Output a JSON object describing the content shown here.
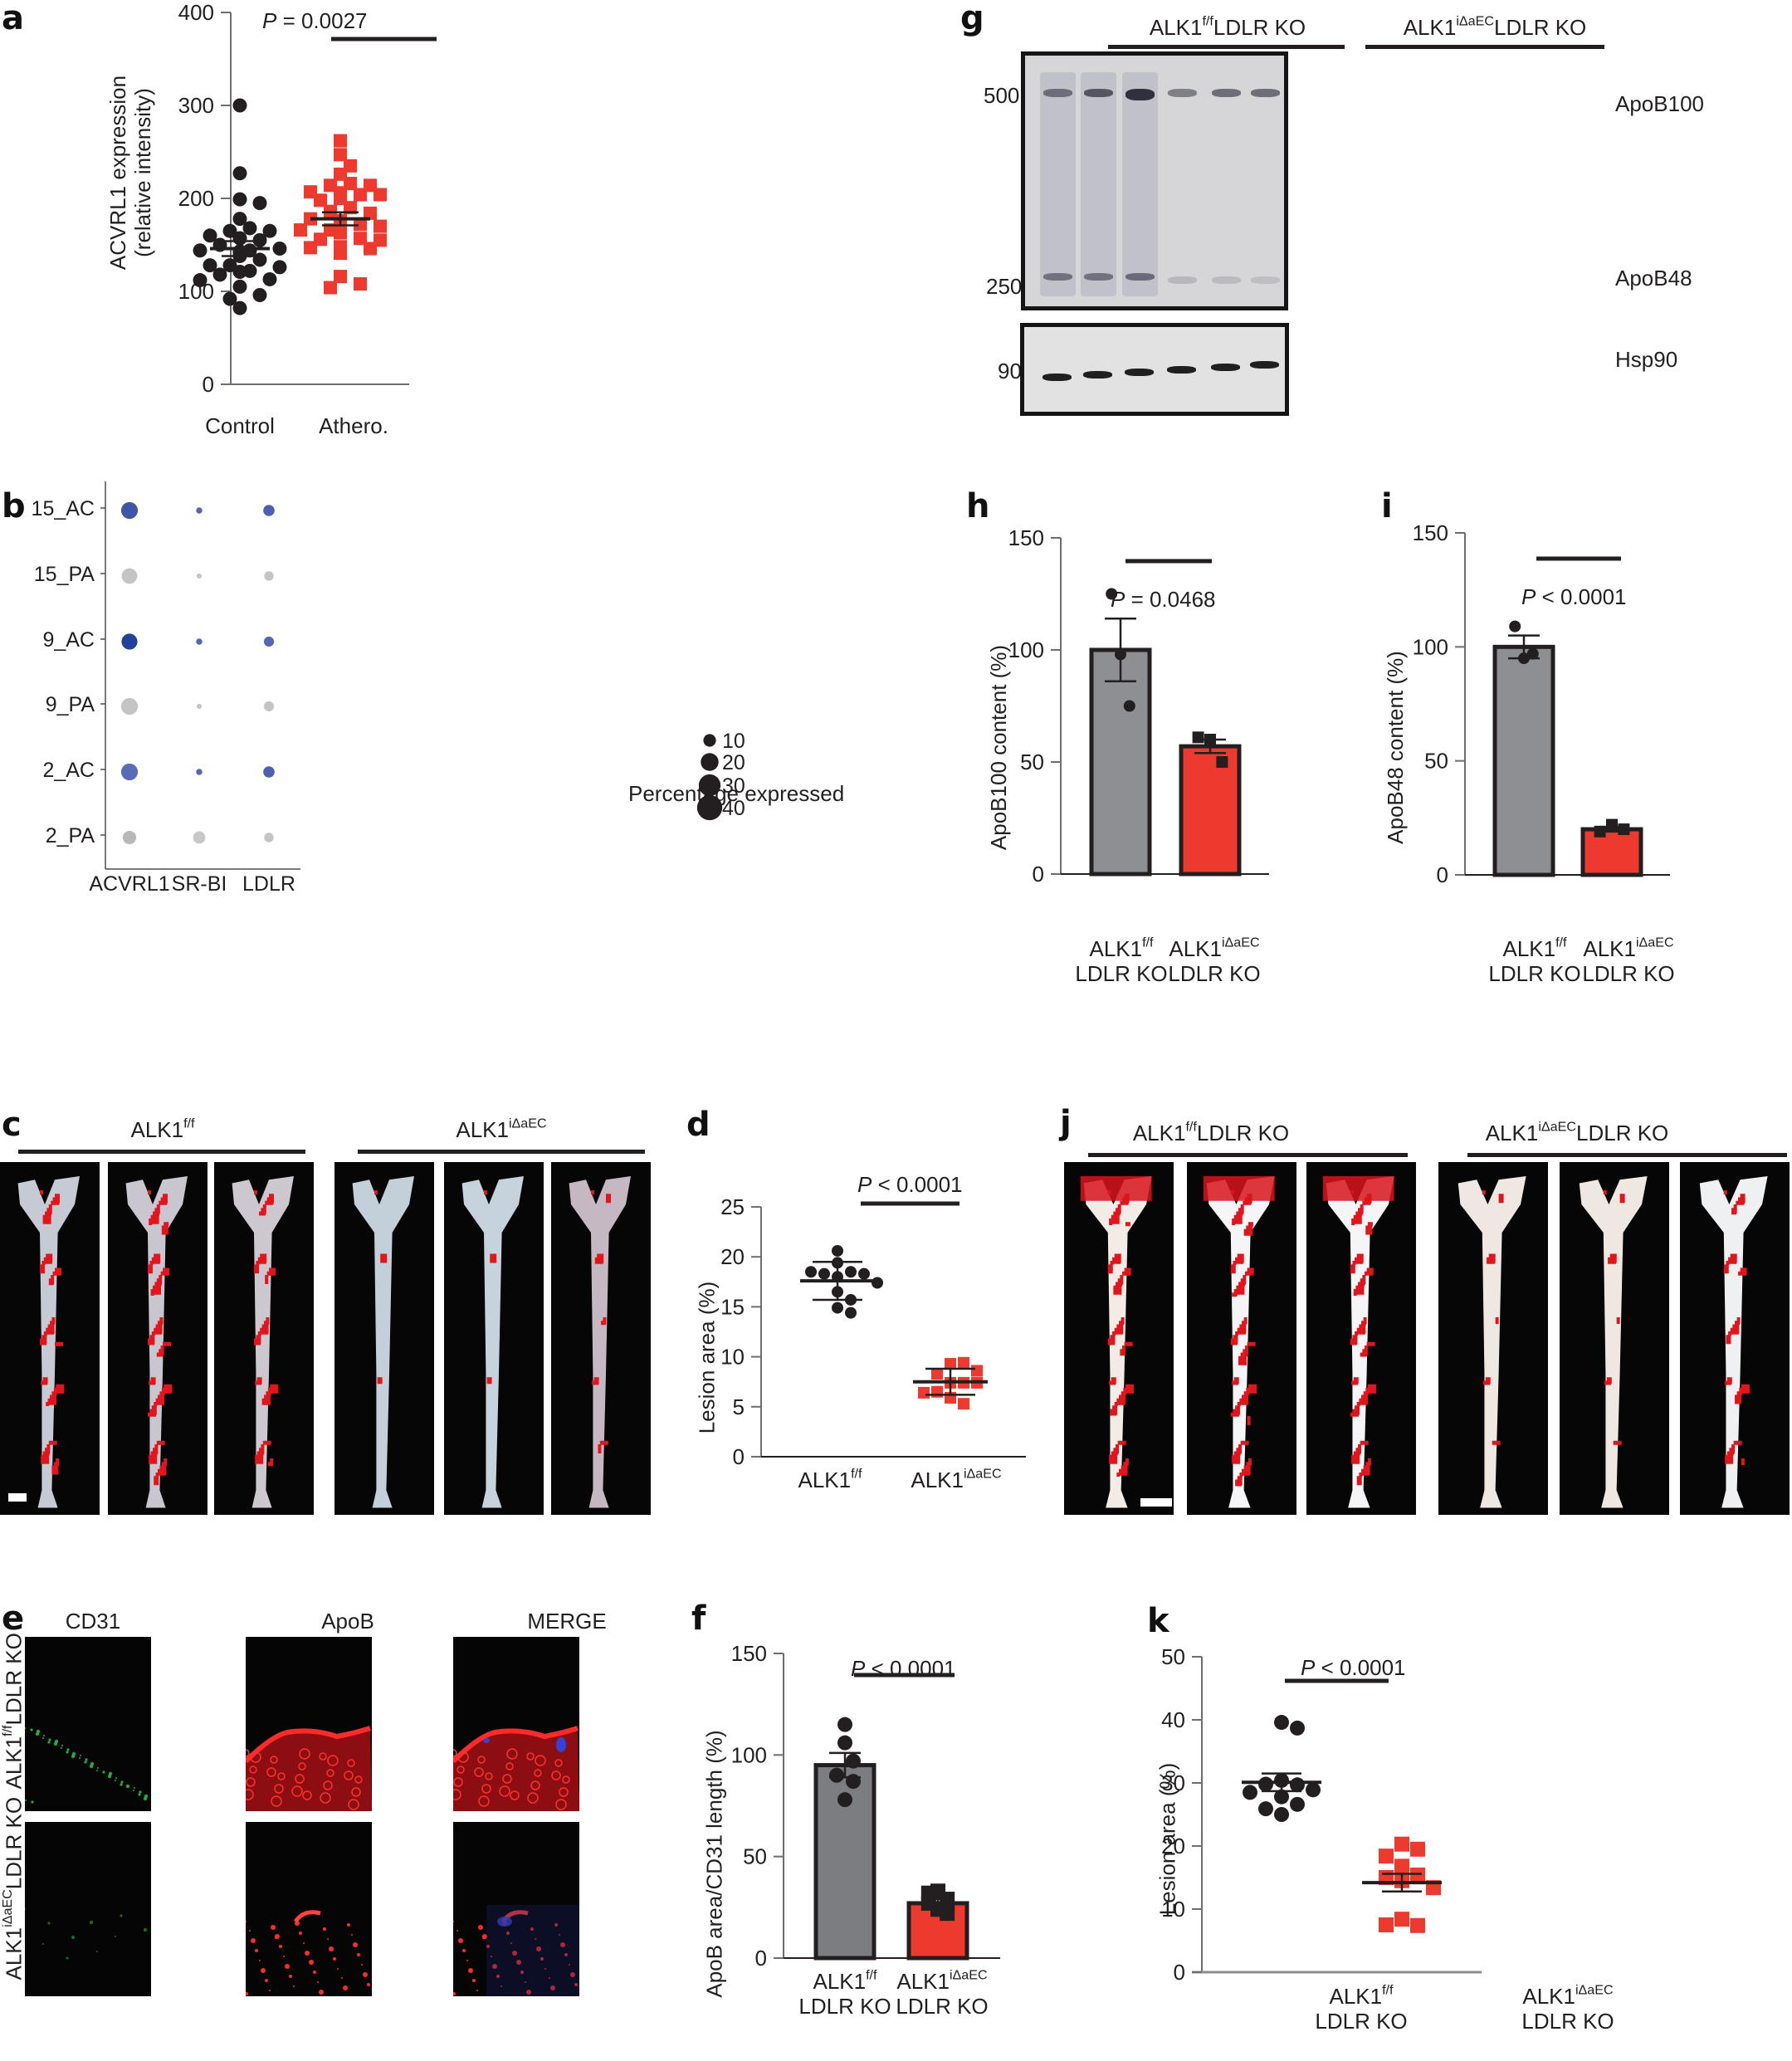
{
  "figure": {
    "panel_letters": [
      "a",
      "b",
      "c",
      "d",
      "e",
      "f",
      "g",
      "h",
      "i",
      "j",
      "k"
    ]
  },
  "panel_a": {
    "letter": "a",
    "ylabel_line1": "ACVRL1 expression",
    "ylabel_line2": "(relative intensity)",
    "pvalue_prefix": "P",
    "pvalue_text": " = 0.0027",
    "categories": [
      "Control",
      "Athero."
    ],
    "yticks": [
      "0",
      "100",
      "200",
      "300",
      "400"
    ]
  },
  "panel_b": {
    "letter": "b",
    "rows": [
      "15_AC",
      "15_PA",
      "9_AC",
      "9_PA",
      "2_AC",
      "2_PA"
    ],
    "columns": [
      "ACVRL1",
      "SR-BI",
      "LDLR"
    ],
    "legend_title": "Percentage expressed",
    "legend_values": [
      "10",
      "20",
      "30",
      "40"
    ]
  },
  "panel_c": {
    "letter": "c",
    "group1_base": "ALK1",
    "group1_sup": "f/f",
    "group2_base": "ALK1",
    "group2_sup": "iΔaEC"
  },
  "panel_d": {
    "letter": "d",
    "ylabel": "Lesion area (%)",
    "pvalue_prefix": "P",
    "pvalue_text": " < 0.0001",
    "cat1_base": "ALK1",
    "cat1_sup": "f/f",
    "cat2_base": "ALK1",
    "cat2_sup": "iΔaEC",
    "yticks": [
      "0",
      "5",
      "10",
      "15",
      "20",
      "25"
    ]
  },
  "panel_e": {
    "letter": "e",
    "col_headers": [
      "CD31",
      "ApoB",
      "MERGE"
    ],
    "row1_base": "ALK1",
    "row1_sup": "f/f",
    "row1_suffix": "LDLR KO",
    "row2_base": "ALK1",
    "row2_sup": "iΔaEC",
    "row2_suffix": "LDLR KO"
  },
  "panel_f": {
    "letter": "f",
    "ylabel": "ApoB area/CD31 length (%)",
    "pvalue_prefix": "P",
    "pvalue_text": " < 0.0001",
    "cat1_base": "ALK1",
    "cat1_sup": "f/f",
    "cat1_line2": "LDLR KO",
    "cat2_base": "ALK1",
    "cat2_sup": "iΔaEC",
    "cat2_line2": "LDLR KO",
    "yticks": [
      "0",
      "50",
      "100",
      "150"
    ]
  },
  "panel_g": {
    "letter": "g",
    "group1_base": "ALK1",
    "group1_sup": "f/f",
    "group1_suffix": "LDLR KO",
    "group2_base": "ALK1",
    "group2_sup": "iΔaEC",
    "group2_suffix": "LDLR KO",
    "mw_500": "500 kDa",
    "mw_250": "250 kDa",
    "mw_90": "90 kDa",
    "band_apob100": "ApoB100",
    "band_apob48": "ApoB48",
    "band_hsp90": "Hsp90"
  },
  "panel_h": {
    "letter": "h",
    "ylabel": "ApoB100 content (%)",
    "pvalue_prefix": "P",
    "pvalue_text": " = 0.0468",
    "cat1_base": "ALK1",
    "cat1_sup": "f/f",
    "cat1_line2": "LDLR KO",
    "cat2_base": "ALK1",
    "cat2_sup": "iΔaEC",
    "cat2_line2": "LDLR KO",
    "yticks": [
      "0",
      "50",
      "100",
      "150"
    ]
  },
  "panel_i": {
    "letter": "i",
    "ylabel": "ApoB48 content (%)",
    "pvalue_prefix": "P",
    "pvalue_text": " < 0.0001",
    "cat1_base": "ALK1",
    "cat1_sup": "f/f",
    "cat1_line2": "LDLR KO",
    "cat2_base": "ALK1",
    "cat2_sup": "iΔaEC",
    "cat2_line2": "LDLR KO",
    "yticks": [
      "0",
      "50",
      "100",
      "150"
    ]
  },
  "panel_j": {
    "letter": "j",
    "group1_base": "ALK1",
    "group1_sup": "f/f",
    "group1_suffix": "LDLR KO",
    "group2_base": "ALK1",
    "group2_sup": "iΔaEC",
    "group2_suffix": "LDLR KO"
  },
  "panel_k": {
    "letter": "k",
    "ylabel": "Lesion area (%)",
    "pvalue_prefix": "P",
    "pvalue_text": " < 0.0001",
    "cat1_base": "ALK1",
    "cat1_sup": "f/f",
    "cat1_line2": "LDLR KO",
    "cat2_base": "ALK1",
    "cat2_sup": "iΔaEC",
    "cat2_line2": "LDLR KO",
    "yticks": [
      "0",
      "10",
      "20",
      "30",
      "40",
      "50"
    ]
  },
  "colors": {
    "control_marker": "#231f20",
    "treated_marker": "#ee3a2e",
    "bar_gray": "#8e8f93",
    "bar_red": "#ee3a2e",
    "dot_blue_dark": "#2a45a0",
    "dot_blue_mid": "#5467b3",
    "dot_gray": "#c4c4c6"
  },
  "chart_data": [
    {
      "panel": "a",
      "type": "scatter",
      "title": "",
      "xlabel": "",
      "ylabel": "ACVRL1 expression (relative intensity)",
      "ylim": [
        0,
        400
      ],
      "categories": [
        "Control",
        "Athero."
      ],
      "annotation": "P = 0.0027",
      "series": [
        {
          "name": "Control",
          "marker": "circle",
          "color": "#231f20",
          "values": [
            300,
            227,
            199,
            195,
            178,
            168,
            165,
            165,
            160,
            157,
            157,
            155,
            150,
            146,
            144,
            144,
            143,
            143,
            141,
            138,
            134,
            128,
            128,
            126,
            122,
            121,
            118,
            113,
            112,
            105,
            96,
            92,
            82
          ],
          "mean": 146,
          "sem": 8
        },
        {
          "name": "Athero.",
          "marker": "square",
          "color": "#ee3a2e",
          "values": [
            262,
            247,
            235,
            226,
            216,
            214,
            214,
            207,
            206,
            204,
            204,
            200,
            198,
            190,
            186,
            184,
            178,
            176,
            172,
            170,
            166,
            166,
            164,
            163,
            157,
            156,
            155,
            148,
            147,
            146,
            143,
            141,
            116,
            108,
            104
          ],
          "mean": 178,
          "sem": 7
        }
      ]
    },
    {
      "panel": "b",
      "type": "scatter",
      "title": "",
      "xlabel": "",
      "ylabel": "",
      "categories": [
        "ACVRL1",
        "SR-BI",
        "LDLR"
      ],
      "rows": [
        "15_AC",
        "15_PA",
        "9_AC",
        "9_PA",
        "2_AC",
        "2_PA"
      ],
      "legend_title": "Percentage expressed",
      "legend_sizes": [
        10,
        20,
        30,
        40
      ],
      "series": [
        {
          "name": "ACVRL1",
          "percent_expressed": [
            22,
            19,
            20,
            22,
            22,
            14
          ],
          "color": [
            "#3e55a8",
            "#c4c4c6",
            "#22419c",
            "#c4c4c6",
            "#5a6cb6",
            "#b8b8ba"
          ]
        },
        {
          "name": "SR-BI",
          "percent_expressed": [
            3,
            2,
            3,
            2,
            3,
            12
          ],
          "color": [
            "#5467b3",
            "#c4c4c6",
            "#5467b3",
            "#c4c4c6",
            "#5467b3",
            "#c8c8ca"
          ]
        },
        {
          "name": "LDLR",
          "percent_expressed": [
            10,
            7,
            8,
            8,
            10,
            7
          ],
          "color": [
            "#4c5fb0",
            "#c4c4c6",
            "#5467b3",
            "#c4c4c6",
            "#4c5fb0",
            "#c4c4c6"
          ]
        }
      ]
    },
    {
      "panel": "d",
      "type": "scatter",
      "title": "",
      "xlabel": "",
      "ylabel": "Lesion area (%)",
      "ylim": [
        0,
        25
      ],
      "categories": [
        "ALK1 f/f",
        "ALK1 iΔaEC"
      ],
      "annotation": "P < 0.0001",
      "series": [
        {
          "name": "ALK1 f/f",
          "marker": "circle",
          "color": "#231f20",
          "values": [
            20.6,
            19.4,
            18.5,
            18.3,
            18.3,
            18.5,
            18.0,
            17.4,
            16.5,
            15.7,
            14.9,
            14.4
          ],
          "mean": 17.6,
          "sd": 1.9
        },
        {
          "name": "ALK1 iΔaEC",
          "marker": "square",
          "color": "#ee3a2e",
          "values": [
            9.3,
            9.4,
            8.3,
            8.6,
            7.4,
            7.4,
            7.4,
            6.5,
            6.4,
            5.9,
            5.3
          ],
          "mean": 7.5,
          "sd": 1.3
        }
      ]
    },
    {
      "panel": "f",
      "type": "bar",
      "title": "",
      "xlabel": "",
      "ylabel": "ApoB area/CD31 length (%)",
      "ylim": [
        0,
        150
      ],
      "categories": [
        "ALK1 f/f LDLR KO",
        "ALK1 iΔaEC LDLR KO"
      ],
      "annotation": "P < 0.0001",
      "values": [
        95,
        27
      ],
      "sem": [
        6,
        2
      ],
      "points": [
        [
          115,
          106,
          97,
          90,
          87,
          78
        ],
        [
          32,
          33,
          29,
          27,
          24,
          22
        ]
      ],
      "colors": [
        "#7c7d80",
        "#ee3a2e"
      ]
    },
    {
      "panel": "h",
      "type": "bar",
      "title": "",
      "xlabel": "",
      "ylabel": "ApoB100 content (%)",
      "ylim": [
        0,
        150
      ],
      "categories": [
        "ALK1 f/f LDLR KO",
        "ALK1 iΔaEC LDLR KO"
      ],
      "annotation": "P = 0.0468",
      "values": [
        100,
        57
      ],
      "sem": [
        14,
        3
      ],
      "points": [
        [
          125,
          98,
          75
        ],
        [
          61,
          60,
          50
        ]
      ],
      "colors": [
        "#8e8f93",
        "#ee3a2e"
      ]
    },
    {
      "panel": "i",
      "type": "bar",
      "title": "",
      "xlabel": "",
      "ylabel": "ApoB48 content (%)",
      "ylim": [
        0,
        150
      ],
      "categories": [
        "ALK1 f/f LDLR KO",
        "ALK1 iΔaEC LDLR KO"
      ],
      "annotation": "P < 0.0001",
      "values": [
        100,
        20
      ],
      "sem": [
        5,
        1
      ],
      "points": [
        [
          109,
          95,
          97
        ],
        [
          19,
          22,
          20
        ]
      ],
      "colors": [
        "#8e8f93",
        "#ee3a2e"
      ]
    },
    {
      "panel": "k",
      "type": "scatter",
      "title": "",
      "xlabel": "",
      "ylabel": "Lesion area (%)",
      "ylim": [
        0,
        50
      ],
      "categories": [
        "ALK1 f/f LDLR KO",
        "ALK1 iΔaEC LDLR KO"
      ],
      "annotation": "P < 0.0001",
      "series": [
        {
          "name": "ALK1 f/f LDLR KO",
          "marker": "circle",
          "color": "#231f20",
          "values": [
            39.6,
            38.7,
            30.4,
            29.7,
            29.8,
            28.9,
            28.5,
            27.8,
            26.6,
            25.9,
            25.0
          ],
          "mean": 30.1,
          "sem": 1.4
        },
        {
          "name": "ALK1 iΔaEC LDLR KO",
          "marker": "square",
          "color": "#ee3a2e",
          "values": [
            20.3,
            19.5,
            18.4,
            16.8,
            15.4,
            15.0,
            14.5,
            13.4,
            8.4,
            7.4,
            7.5
          ],
          "mean": 14.2,
          "sem": 1.4
        }
      ]
    }
  ]
}
